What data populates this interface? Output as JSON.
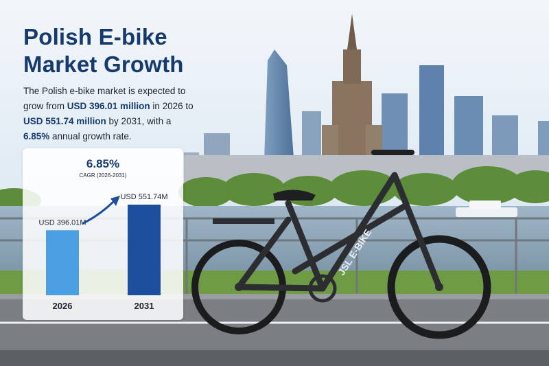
{
  "headline": "Polish E-bike\nMarket Growth",
  "intro": {
    "t1": "The Polish e-bike market is expected to grow from ",
    "v1": "USD 396.01 million",
    "t2": " in 2026 to ",
    "v2": "USD 551.74 million",
    "t3": " by 2031, with a ",
    "v3": "6.85%",
    "t4": " annual growth rate."
  },
  "cagr": {
    "value": "6.85%",
    "label": "CAGR (2026-2031)"
  },
  "bike_brand": "JSL E-BIKE",
  "colors": {
    "title": "#163a6b",
    "bar_2026": "#4b9fe0",
    "bar_2031": "#1d4f9c",
    "arrow": "#1d4f9c"
  },
  "chart_data": {
    "type": "bar",
    "categories": [
      "2026",
      "2031"
    ],
    "values": [
      396.01,
      551.74
    ],
    "value_labels": [
      "USD 396.01M",
      "USD 551.74M"
    ],
    "annotation": "6.85%",
    "annotation_sub": "CAGR (2026-2031)",
    "title": "",
    "xlabel": "",
    "ylabel": ""
  }
}
